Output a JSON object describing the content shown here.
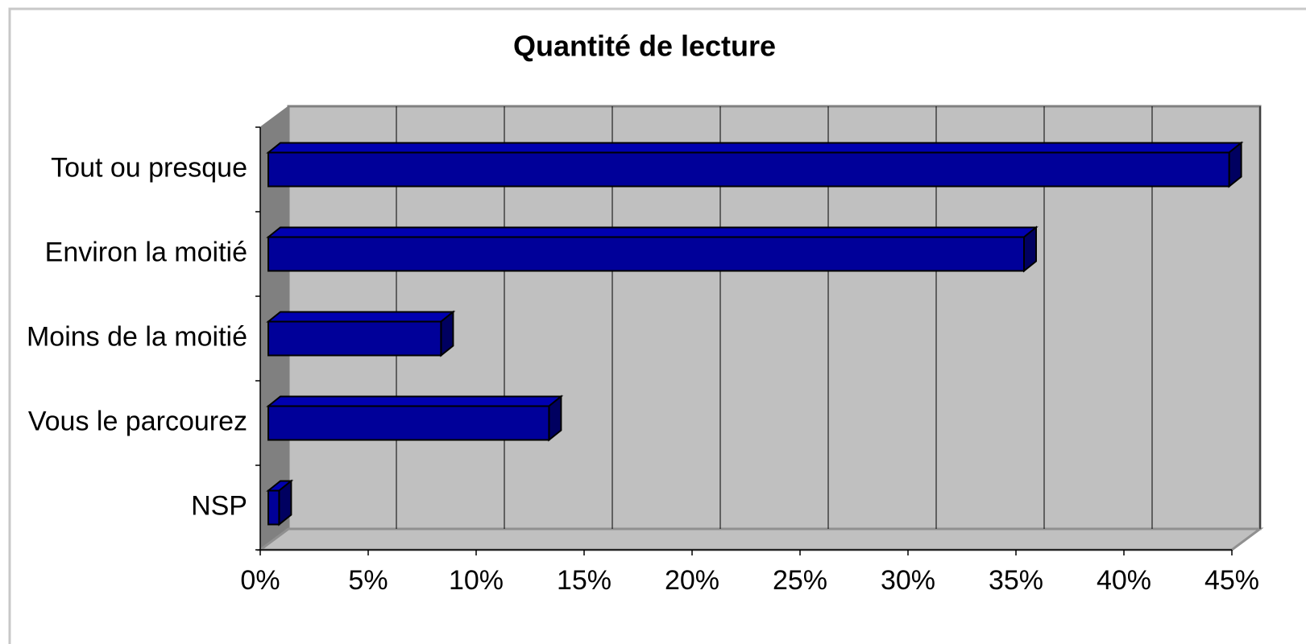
{
  "chart_data": {
    "type": "bar3d_horizontal",
    "title": "Quantité de lecture",
    "categories": [
      "Tout ou presque",
      "Environ la moitié",
      "Moins de la moitié",
      "Vous le parcourez",
      "NSP"
    ],
    "values": [
      44.5,
      35,
      8,
      13,
      0.5
    ],
    "color": "#000099",
    "xlim": [
      0,
      45
    ],
    "xticks": [
      {
        "value": 0,
        "label": "0%"
      },
      {
        "value": 5,
        "label": "5%"
      },
      {
        "value": 10,
        "label": "10%"
      },
      {
        "value": 15,
        "label": "15%"
      },
      {
        "value": 20,
        "label": "20%"
      },
      {
        "value": 25,
        "label": "25%"
      },
      {
        "value": 30,
        "label": "30%"
      },
      {
        "value": 35,
        "label": "35%"
      },
      {
        "value": 40,
        "label": "40%"
      },
      {
        "value": 45,
        "label": "45%"
      }
    ],
    "grid": true
  }
}
